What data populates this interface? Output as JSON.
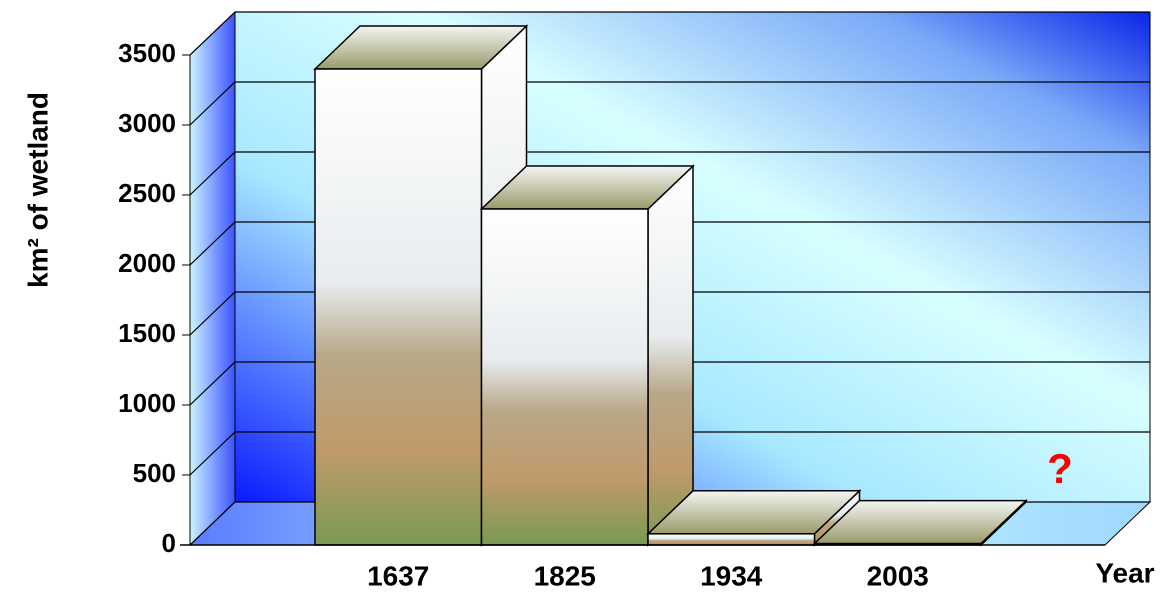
{
  "chart_data": {
    "type": "bar3d",
    "categories": [
      "1637",
      "1825",
      "1934",
      "2003"
    ],
    "values": [
      3400,
      2400,
      80,
      10
    ],
    "ylim": [
      0,
      3500
    ],
    "yticks": [
      0,
      500,
      1000,
      1500,
      2000,
      2500,
      3000,
      3500
    ],
    "y_label": "km² of wetland",
    "x_label": "Year",
    "annotation": "?",
    "annotation_color": "#ff0000",
    "grid": true
  }
}
